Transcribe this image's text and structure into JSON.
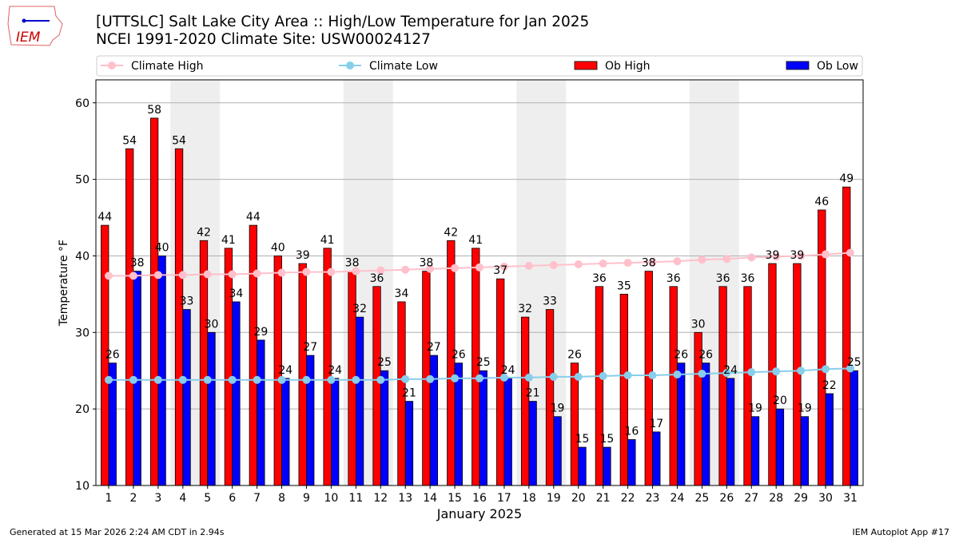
{
  "header": {
    "title_line1": "[UTTSLC] Salt Lake City Area :: High/Low Temperature for Jan 2025",
    "title_line2": "NCEI 1991-2020 Climate Site: USW00024127",
    "logo_text": "IEM"
  },
  "footer": {
    "left": "Generated at 15 Mar 2026 2:24 AM CDT in 2.94s",
    "right": "IEM Autoplot App #17"
  },
  "colors": {
    "ob_high": "#ff0000",
    "ob_low": "#0000ff",
    "climate_high": "#ffc0cb",
    "climate_low": "#87ceeb",
    "weekend_shade": "#eeeeee"
  },
  "chart_data": {
    "type": "bar",
    "xlabel": "January 2025",
    "ylabel": "Temperature °F",
    "ylim": [
      10,
      63
    ],
    "yticks": [
      10,
      20,
      30,
      40,
      50,
      60
    ],
    "grid": true,
    "legend_placement": "top",
    "categories": [
      1,
      2,
      3,
      4,
      5,
      6,
      7,
      8,
      9,
      10,
      11,
      12,
      13,
      14,
      15,
      16,
      17,
      18,
      19,
      20,
      21,
      22,
      23,
      24,
      25,
      26,
      27,
      28,
      29,
      30,
      31
    ],
    "weekend_days": [
      4,
      5,
      11,
      12,
      18,
      19,
      25,
      26
    ],
    "series": [
      {
        "name": "Ob High",
        "kind": "bar",
        "values": [
          44,
          54,
          58,
          54,
          42,
          41,
          44,
          40,
          39,
          41,
          38,
          36,
          34,
          38,
          42,
          41,
          37,
          32,
          33,
          26,
          36,
          35,
          38,
          36,
          30,
          36,
          36,
          39,
          39,
          46,
          49
        ]
      },
      {
        "name": "Ob Low",
        "kind": "bar",
        "values": [
          26,
          38,
          40,
          33,
          30,
          34,
          29,
          24,
          27,
          24,
          32,
          25,
          21,
          27,
          26,
          25,
          24,
          21,
          19,
          15,
          15,
          16,
          17,
          26,
          26,
          24,
          19,
          20,
          19,
          22,
          25
        ]
      },
      {
        "name": "Climate High",
        "kind": "line",
        "values": [
          37.4,
          37.4,
          37.5,
          37.5,
          37.6,
          37.6,
          37.7,
          37.8,
          37.9,
          37.9,
          38.0,
          38.1,
          38.2,
          38.3,
          38.4,
          38.5,
          38.6,
          38.7,
          38.8,
          38.9,
          39.0,
          39.1,
          39.2,
          39.3,
          39.5,
          39.6,
          39.8,
          39.9,
          40.0,
          40.2,
          40.4
        ]
      },
      {
        "name": "Climate Low",
        "kind": "line",
        "values": [
          23.8,
          23.8,
          23.8,
          23.8,
          23.8,
          23.8,
          23.8,
          23.8,
          23.8,
          23.8,
          23.8,
          23.8,
          23.9,
          23.9,
          24.0,
          24.0,
          24.1,
          24.1,
          24.2,
          24.2,
          24.3,
          24.4,
          24.4,
          24.5,
          24.6,
          24.7,
          24.8,
          24.9,
          25.0,
          25.2,
          25.3
        ]
      }
    ]
  }
}
